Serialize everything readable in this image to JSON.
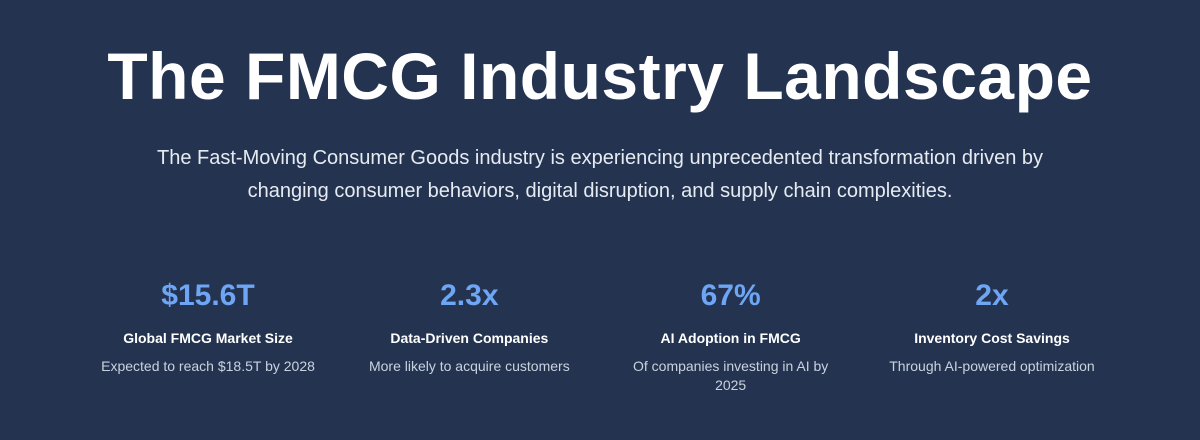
{
  "hero": {
    "title": "The FMCG Industry Landscape",
    "subtitle": "The Fast-Moving Consumer Goods industry is experiencing unprecedented transformation driven by changing consumer behaviors, digital disruption, and supply chain complexities."
  },
  "stats": [
    {
      "value": "$15.6T",
      "label": "Global FMCG Market Size",
      "description": "Expected to reach $18.5T by 2028"
    },
    {
      "value": "2.3x",
      "label": "Data-Driven Companies",
      "description": "More likely to acquire customers"
    },
    {
      "value": "67%",
      "label": "AI Adoption in FMCG",
      "description": "Of companies investing in AI by 2025"
    },
    {
      "value": "2x",
      "label": "Inventory Cost Savings",
      "description": "Through AI-powered optimization"
    }
  ],
  "colors": {
    "background": "#243450",
    "accent": "#6ea6f5",
    "text": "#ffffff",
    "muted_text": "#c9d2df"
  }
}
